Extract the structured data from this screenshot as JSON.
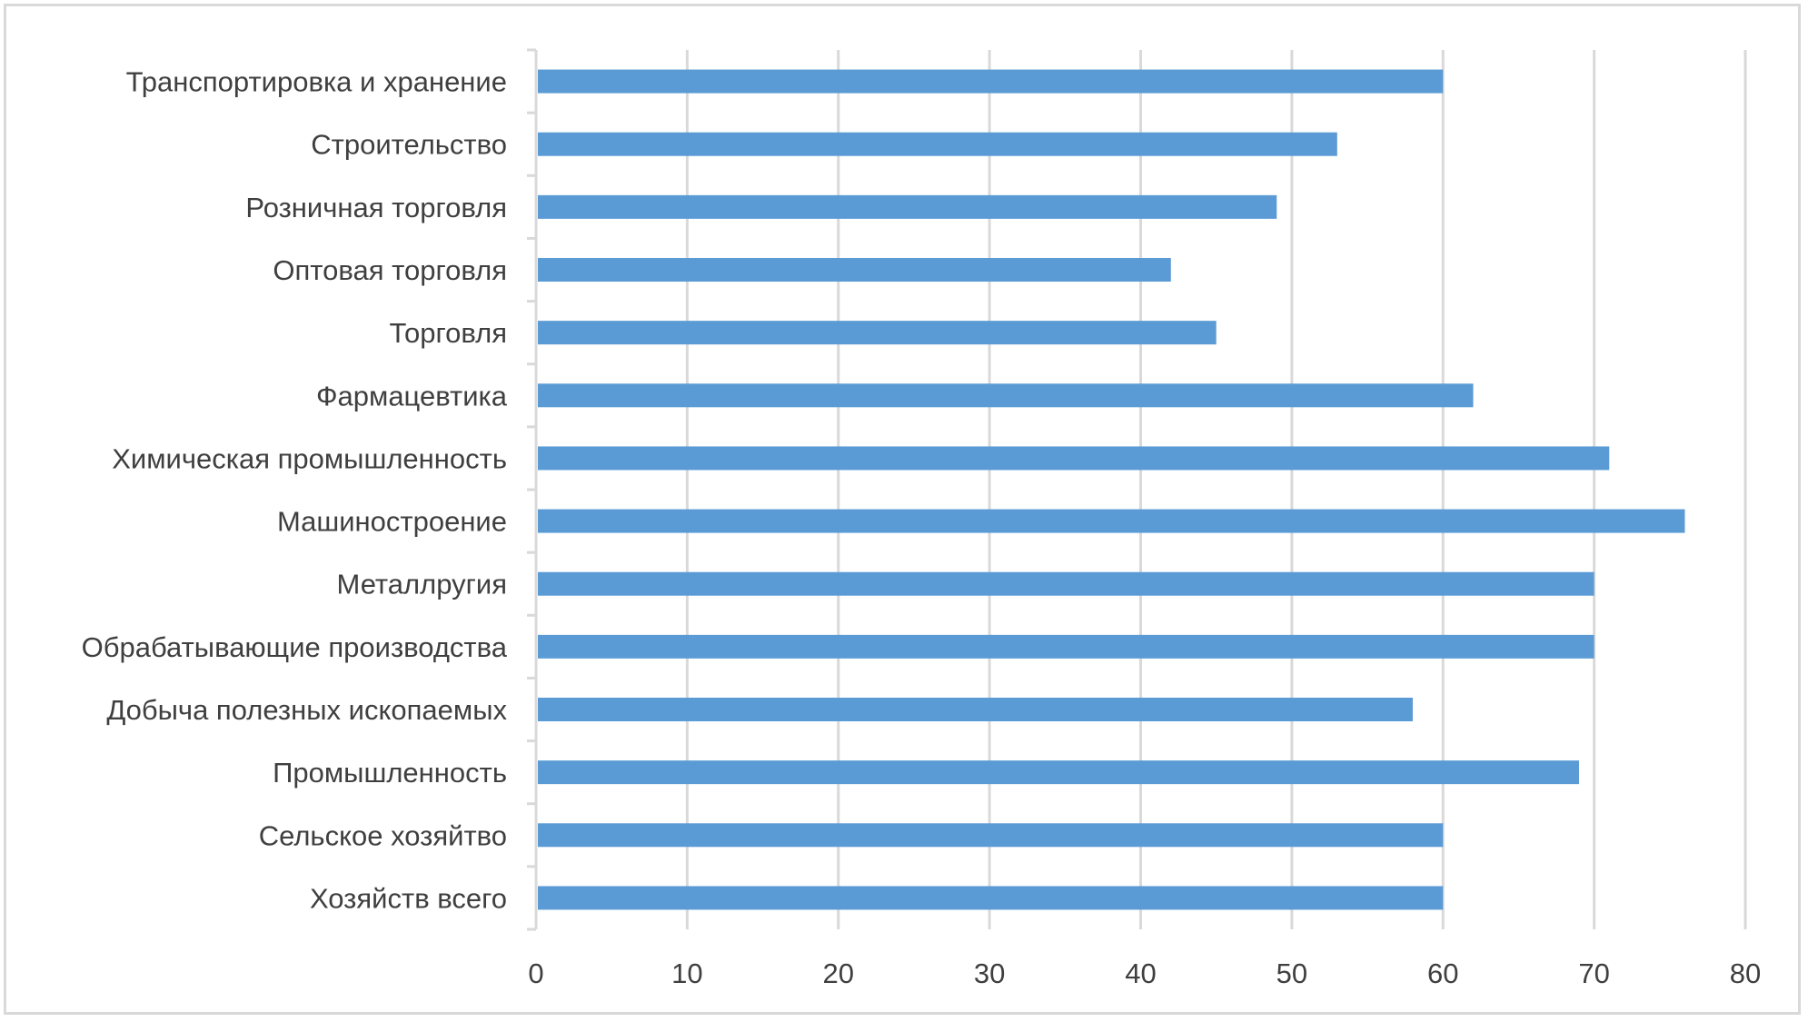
{
  "chart_data": {
    "type": "bar",
    "orientation": "horizontal",
    "categories": [
      "Хозяйств всего",
      "Сельское хозяйтво",
      "Промышленность",
      "Добыча полезных ископаемых",
      "Обрабатывающие производства",
      "Металлругия",
      "Машиностроение",
      "Химическая промышленность",
      "Фармацевтика",
      "Торговля",
      "Оптовая торговля",
      "Розничная торговля",
      "Строительство ",
      "Транспортировка и хранение"
    ],
    "values": [
      60,
      60,
      69,
      58,
      70,
      70,
      76,
      71,
      62,
      45,
      42,
      49,
      53,
      60
    ],
    "xlim": [
      0,
      80
    ],
    "xticks": [
      "0",
      "10",
      "20",
      "30",
      "40",
      "50",
      "60",
      "70",
      "80"
    ],
    "title": "",
    "xlabel": "",
    "ylabel": "",
    "grid": "vertical",
    "legend": "none",
    "colors": {
      "bar": "#5b9bd5",
      "grid": "#d9d9d9",
      "axis": "#d9d9d9",
      "text": "#3f3f3f",
      "border": "#d9d9d9"
    }
  }
}
